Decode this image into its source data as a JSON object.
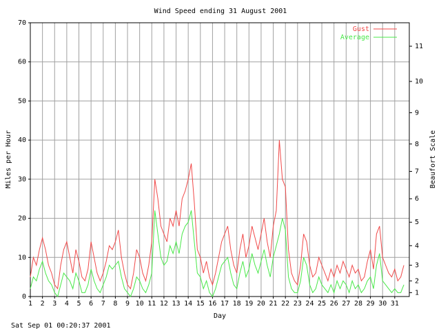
{
  "chart_data": {
    "type": "line",
    "title": "Wind Speed ending 31 August 2001",
    "x_label": "Day",
    "y_label": "Miles per Hour",
    "y2_label": "Beaufort Scale",
    "timestamp": "Sat Sep 01 00:20:37 2001",
    "legend": "upper right",
    "grid": true,
    "xlim": [
      1,
      32.2
    ],
    "xticks": [
      1,
      2,
      3,
      4,
      5,
      6,
      7,
      8,
      9,
      10,
      11,
      12,
      13,
      14,
      15,
      16,
      17,
      18,
      19,
      20,
      21,
      22,
      23,
      24,
      25,
      26,
      27,
      28,
      29,
      30,
      31
    ],
    "ylim": [
      0,
      70
    ],
    "yticks": [
      0,
      10,
      20,
      30,
      40,
      50,
      60,
      70
    ],
    "y2lim": [
      0,
      70
    ],
    "y2ticks": [
      1,
      {
        "value": 4,
        "label": "2"
      },
      {
        "value": 8,
        "label": "3"
      },
      {
        "value": 13,
        "label": "4"
      },
      {
        "value": 19,
        "label": "5"
      },
      {
        "value": 25,
        "label": "6"
      },
      {
        "value": 32,
        "label": "7"
      },
      {
        "value": 39,
        "label": "8"
      },
      {
        "value": 47,
        "label": "9"
      },
      {
        "value": 55,
        "label": "10"
      },
      {
        "value": 64,
        "label": "11"
      }
    ],
    "x": [
      1,
      1.25,
      1.5,
      1.75,
      2,
      2.25,
      2.5,
      2.75,
      3,
      3.25,
      3.5,
      3.75,
      4,
      4.25,
      4.5,
      4.75,
      5,
      5.25,
      5.5,
      5.75,
      6,
      6.25,
      6.5,
      6.75,
      7,
      7.25,
      7.5,
      7.75,
      8,
      8.25,
      8.5,
      8.75,
      9,
      9.25,
      9.5,
      9.75,
      10,
      10.25,
      10.5,
      10.75,
      11,
      11.25,
      11.5,
      11.75,
      12,
      12.25,
      12.5,
      12.75,
      13,
      13.25,
      13.5,
      13.75,
      14,
      14.25,
      14.5,
      14.75,
      15,
      15.25,
      15.5,
      15.75,
      16,
      16.25,
      16.5,
      16.75,
      17,
      17.25,
      17.5,
      17.75,
      18,
      18.25,
      18.5,
      18.75,
      19,
      19.25,
      19.5,
      19.75,
      20,
      20.25,
      20.5,
      20.75,
      21,
      21.25,
      21.5,
      21.75,
      22,
      22.25,
      22.5,
      22.75,
      23,
      23.25,
      23.5,
      23.75,
      24,
      24.25,
      24.5,
      24.75,
      25,
      25.25,
      25.5,
      25.75,
      26,
      26.25,
      26.5,
      26.75,
      27,
      27.25,
      27.5,
      27.75,
      28,
      28.25,
      28.5,
      28.75,
      29,
      29.25,
      29.5,
      29.75,
      30,
      30.25,
      30.5,
      30.75,
      31,
      31.25,
      31.5,
      31.75
    ],
    "series": [
      {
        "name": "Gust",
        "color": "#f04848",
        "values": [
          5,
          10,
          8,
          12,
          15,
          12,
          8,
          6,
          3,
          2,
          8,
          12,
          14,
          10,
          6,
          12,
          9,
          5,
          4,
          7,
          14,
          10,
          6,
          4,
          6,
          9,
          13,
          12,
          14,
          17,
          10,
          6,
          3,
          2,
          6,
          12,
          10,
          6,
          4,
          8,
          14,
          30,
          25,
          18,
          16,
          14,
          20,
          18,
          22,
          18,
          25,
          27,
          30,
          34,
          24,
          12,
          10,
          6,
          9,
          5,
          3,
          6,
          10,
          14,
          16,
          18,
          12,
          8,
          6,
          12,
          16,
          10,
          13,
          18,
          15,
          12,
          16,
          20,
          14,
          10,
          18,
          22,
          40,
          30,
          28,
          12,
          6,
          4,
          3,
          8,
          16,
          14,
          8,
          5,
          6,
          10,
          8,
          6,
          4,
          7,
          5,
          8,
          6,
          9,
          7,
          5,
          8,
          6,
          7,
          4,
          5,
          9,
          12,
          7,
          16,
          18,
          10,
          8,
          6,
          5,
          7,
          4,
          5,
          8
        ]
      },
      {
        "name": "Average",
        "color": "#48e848",
        "values": [
          2,
          5,
          4,
          7,
          9,
          6,
          4,
          3,
          1,
          0,
          3,
          6,
          5,
          4,
          2,
          6,
          4,
          1,
          1,
          3,
          7,
          4,
          2,
          1,
          3,
          5,
          8,
          7,
          8,
          9,
          5,
          2,
          1,
          0,
          2,
          5,
          4,
          2,
          1,
          3,
          6,
          22,
          16,
          10,
          8,
          9,
          13,
          11,
          14,
          11,
          16,
          18,
          19,
          22,
          14,
          6,
          5,
          2,
          4,
          1,
          0,
          2,
          5,
          8,
          9,
          10,
          6,
          3,
          2,
          6,
          9,
          5,
          7,
          11,
          8,
          6,
          9,
          12,
          8,
          5,
          10,
          13,
          16,
          20,
          17,
          5,
          2,
          1,
          1,
          4,
          10,
          8,
          3,
          1,
          2,
          5,
          3,
          2,
          1,
          3,
          1,
          4,
          2,
          4,
          3,
          1,
          4,
          2,
          3,
          1,
          2,
          4,
          5,
          2,
          8,
          11,
          4,
          3,
          2,
          1,
          2,
          1,
          1,
          3
        ]
      }
    ]
  }
}
